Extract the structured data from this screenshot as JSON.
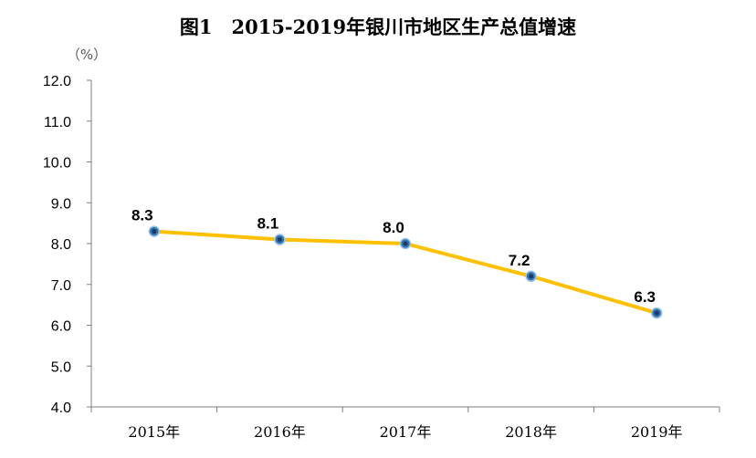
{
  "chart_data": {
    "type": "line",
    "title": "图1　2015-2019年银川市地区生产总值增速",
    "unit_label": "（%）",
    "categories": [
      "2015年",
      "2016年",
      "2017年",
      "2018年",
      "2019年"
    ],
    "series": [
      {
        "values": [
          8.3,
          8.1,
          8.0,
          7.2,
          6.3
        ]
      }
    ],
    "data_labels": [
      "8.3",
      "8.1",
      "8.0",
      "7.2",
      "6.3"
    ],
    "ylim": [
      4.0,
      12.0
    ],
    "yticks": [
      4.0,
      5.0,
      6.0,
      7.0,
      8.0,
      9.0,
      10.0,
      11.0,
      12.0
    ],
    "grid": false,
    "line_color": "#FFC000",
    "marker_color": "#2E75B6",
    "marker_inner_color": "#1F3864"
  }
}
